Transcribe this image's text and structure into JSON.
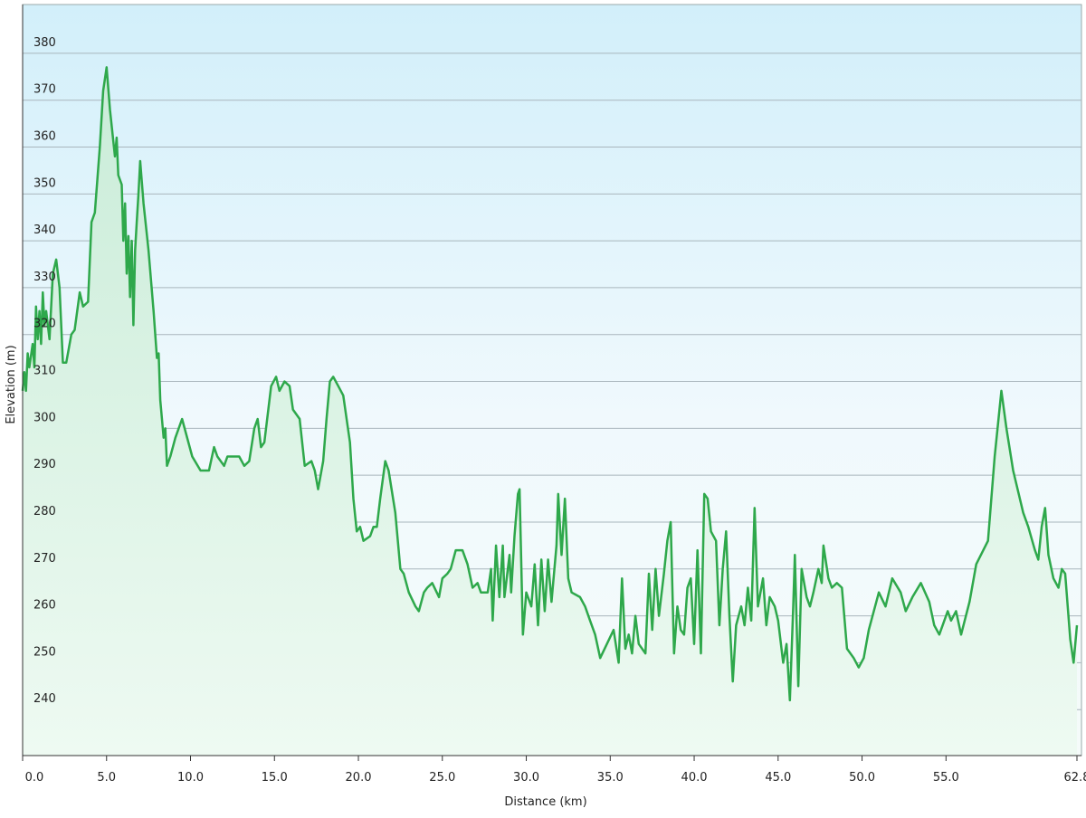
{
  "chart_data": {
    "type": "line",
    "x_label": "Distance (km)",
    "y_label": "Elevation (m)",
    "color": "#2ea84b",
    "grid": true,
    "xlim": [
      0,
      62.8
    ],
    "ylim": [
      230.2,
      390.4
    ],
    "xticks": [
      {
        "value": 0,
        "label": "0.0"
      },
      {
        "value": 5,
        "label": "5.0"
      },
      {
        "value": 10,
        "label": "10.0"
      },
      {
        "value": 15,
        "label": "15.0"
      },
      {
        "value": 20,
        "label": "20.0"
      },
      {
        "value": 25,
        "label": "25.0"
      },
      {
        "value": 30,
        "label": "30.0"
      },
      {
        "value": 35,
        "label": "35.0"
      },
      {
        "value": 40,
        "label": "40.0"
      },
      {
        "value": 45,
        "label": "45.0"
      },
      {
        "value": 50,
        "label": "50.0"
      },
      {
        "value": 55,
        "label": "55.0"
      },
      62.8
    ],
    "yticks": [
      240,
      250,
      260,
      270,
      280,
      290,
      300,
      310,
      320,
      330,
      340,
      350,
      360,
      370,
      380
    ],
    "x": [
      0.0,
      0.1,
      0.2,
      0.3,
      0.4,
      0.6,
      0.7,
      0.8,
      0.9,
      1.0,
      1.1,
      1.2,
      1.3,
      1.4,
      1.6,
      1.8,
      2.0,
      2.2,
      2.4,
      2.6,
      2.9,
      3.1,
      3.4,
      3.6,
      3.9,
      4.1,
      4.3,
      4.6,
      4.8,
      5.0,
      5.2,
      5.5,
      5.6,
      5.7,
      5.9,
      6.0,
      6.1,
      6.2,
      6.3,
      6.4,
      6.5,
      6.6,
      6.7,
      6.8,
      6.9,
      7.0,
      7.2,
      7.5,
      7.8,
      8.0,
      8.1,
      8.2,
      8.4,
      8.5,
      8.6,
      8.8,
      9.1,
      9.5,
      10.1,
      10.6,
      11.1,
      11.4,
      11.6,
      12.0,
      12.2,
      12.9,
      13.2,
      13.5,
      13.8,
      14.0,
      14.2,
      14.4,
      14.8,
      15.1,
      15.3,
      15.6,
      15.9,
      16.1,
      16.5,
      16.8,
      17.2,
      17.4,
      17.6,
      17.9,
      18.1,
      18.3,
      18.5,
      18.8,
      19.1,
      19.5,
      19.7,
      19.9,
      20.1,
      20.3,
      20.7,
      20.9,
      21.1,
      21.3,
      21.6,
      21.8,
      22.2,
      22.5,
      22.7,
      23.0,
      23.4,
      23.6,
      23.9,
      24.1,
      24.4,
      24.8,
      25.0,
      25.3,
      25.5,
      25.8,
      26.2,
      26.5,
      26.8,
      27.1,
      27.3,
      27.7,
      27.9,
      28.0,
      28.2,
      28.4,
      28.6,
      28.7,
      29.0,
      29.1,
      29.3,
      29.5,
      29.6,
      29.8,
      30.0,
      30.3,
      30.5,
      30.7,
      30.9,
      31.1,
      31.3,
      31.5,
      31.8,
      31.9,
      32.1,
      32.3,
      32.5,
      32.7,
      33.2,
      33.5,
      33.8,
      34.1,
      34.4,
      34.8,
      35.2,
      35.5,
      35.7,
      35.9,
      36.1,
      36.3,
      36.5,
      36.7,
      37.1,
      37.3,
      37.5,
      37.7,
      37.9,
      38.2,
      38.4,
      38.6,
      38.8,
      39.0,
      39.2,
      39.4,
      39.6,
      39.8,
      40.0,
      40.2,
      40.4,
      40.6,
      40.8,
      41.0,
      41.3,
      41.5,
      41.7,
      41.9,
      42.1,
      42.3,
      42.5,
      42.8,
      43.0,
      43.2,
      43.4,
      43.6,
      43.8,
      44.1,
      44.3,
      44.5,
      44.8,
      45.0,
      45.3,
      45.5,
      45.7,
      45.9,
      46.0,
      46.2,
      46.4,
      46.7,
      46.9,
      47.1,
      47.4,
      47.6,
      47.7,
      48.0,
      48.2,
      48.5,
      48.8,
      49.1,
      49.5,
      49.8,
      50.1,
      50.4,
      51.0,
      51.4,
      51.8,
      52.3,
      52.6,
      53.0,
      53.5,
      54.0,
      54.3,
      54.6,
      55.1,
      55.3,
      55.6,
      55.9,
      56.4,
      56.8,
      57.5,
      57.9,
      58.3,
      58.6,
      59.0,
      59.6,
      59.9,
      60.3,
      60.5,
      60.7,
      60.9,
      61.1,
      61.4,
      61.7,
      61.9,
      62.1,
      62.4,
      62.6,
      62.8
    ],
    "values": [
      308,
      312,
      308,
      316,
      313,
      318,
      313,
      326,
      319,
      325,
      318,
      329,
      322,
      325,
      319,
      333,
      336,
      330,
      314,
      314,
      320,
      321,
      329,
      326,
      327,
      344,
      346,
      360,
      372,
      377,
      368,
      358,
      362,
      354,
      352,
      340,
      348,
      333,
      341,
      328,
      340,
      322,
      338,
      344,
      350,
      357,
      348,
      338,
      325,
      315,
      316,
      306,
      298,
      300,
      292,
      294,
      298,
      302,
      294,
      291,
      291,
      296,
      294,
      292,
      294,
      294,
      292,
      293,
      300,
      302,
      296,
      297,
      309,
      311,
      308,
      310,
      309,
      304,
      302,
      292,
      293,
      291,
      287,
      293,
      302,
      310,
      311,
      309,
      307,
      297,
      285,
      278,
      279,
      276,
      277,
      279,
      279,
      285,
      293,
      291,
      282,
      270,
      269,
      265,
      262,
      261,
      265,
      266,
      267,
      264,
      268,
      269,
      270,
      274,
      274,
      271,
      266,
      267,
      265,
      265,
      270,
      259,
      275,
      264,
      275,
      264,
      273,
      265,
      277,
      286,
      287,
      256,
      265,
      262,
      271,
      258,
      272,
      261,
      272,
      263,
      275,
      286,
      273,
      285,
      268,
      265,
      264,
      262,
      259,
      256,
      251,
      254,
      257,
      250,
      268,
      253,
      256,
      252,
      260,
      254,
      252,
      269,
      257,
      270,
      260,
      269,
      276,
      280,
      252,
      262,
      257,
      256,
      266,
      268,
      254,
      274,
      252,
      286,
      285,
      278,
      276,
      258,
      270,
      278,
      260,
      246,
      258,
      262,
      258,
      266,
      259,
      283,
      262,
      268,
      258,
      264,
      262,
      259,
      250,
      254,
      242,
      262,
      273,
      245,
      270,
      264,
      262,
      265,
      270,
      267,
      275,
      268,
      266,
      267,
      266,
      253,
      251,
      249,
      251,
      257,
      265,
      262,
      268,
      265,
      261,
      264,
      267,
      263,
      258,
      256,
      261,
      259,
      261,
      256,
      263,
      271,
      276,
      294,
      308,
      300,
      291,
      282,
      279,
      274,
      272,
      279,
      283,
      273,
      268,
      266,
      270,
      269,
      255,
      250,
      258
    ]
  }
}
